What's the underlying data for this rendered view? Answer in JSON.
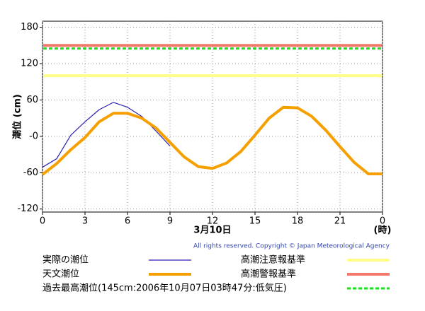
{
  "chart_data": {
    "type": "line",
    "ylabel": "潮位 (cm)",
    "xlabel": "3月10日",
    "xunit": "(時)",
    "copyright": "All rights reserved. Copyright © Japan Meteorological Agency",
    "xlim": [
      0,
      24
    ],
    "xticks": [
      0,
      3,
      6,
      9,
      12,
      15,
      18,
      21,
      {
        "value": 24,
        "label": "0"
      }
    ],
    "ylim": [
      -125,
      190
    ],
    "yticks": [
      180,
      120,
      60,
      {
        "value": 0,
        "label": "-0"
      },
      -60,
      -120
    ],
    "grid": true,
    "series": [
      {
        "name": "実際の潮位",
        "color": "#2a22b0",
        "x": [
          0,
          1,
          2,
          3,
          4,
          5,
          6,
          7,
          8,
          9
        ],
        "values": [
          -51,
          -37,
          2,
          24,
          44,
          56,
          48,
          33,
          9,
          -16
        ]
      },
      {
        "name": "天文潮位",
        "color": "#f5a000",
        "x": [
          0,
          1,
          2,
          3,
          4,
          5,
          6,
          7,
          8,
          9,
          10,
          11,
          12,
          13,
          14,
          15,
          16,
          17,
          18,
          19,
          20,
          21,
          22,
          23,
          24
        ],
        "values": [
          -63,
          -45,
          -22,
          -2,
          24,
          38,
          38,
          30,
          14,
          -10,
          -34,
          -50,
          -53,
          -44,
          -25,
          2,
          30,
          48,
          47,
          33,
          10,
          -17,
          -43,
          -62,
          -62
        ]
      }
    ],
    "reference_lines": [
      {
        "name": "高潮注意報基準",
        "value": 100,
        "color": "#ffff88"
      },
      {
        "name": "高潮警報基準",
        "value": 150,
        "color": "#f4786a"
      },
      {
        "name": "過去最高潮位(145cm:2006年10月07日03時47分:低気圧)",
        "value": 145,
        "color": "#22dd22",
        "dashed": true
      }
    ]
  }
}
